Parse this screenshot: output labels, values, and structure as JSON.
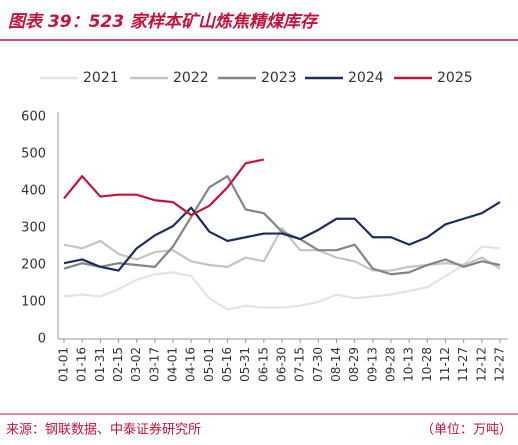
{
  "header": {
    "title": "图表 39：523 家样本矿山炼焦精煤库存"
  },
  "chart_data": {
    "type": "line",
    "categories": [
      "01-01",
      "01-16",
      "01-31",
      "02-15",
      "03-02",
      "03-17",
      "04-01",
      "04-16",
      "05-01",
      "05-16",
      "05-31",
      "06-15",
      "06-30",
      "07-15",
      "07-30",
      "08-14",
      "08-29",
      "09-13",
      "09-28",
      "10-13",
      "10-28",
      "11-12",
      "11-27",
      "12-12",
      "12-27"
    ],
    "series": [
      {
        "name": "2021",
        "color": "#e3e3e3",
        "values": [
          115,
          120,
          115,
          135,
          160,
          175,
          180,
          170,
          110,
          80,
          90,
          85,
          85,
          90,
          100,
          120,
          110,
          115,
          120,
          130,
          140,
          170,
          200,
          250,
          245
        ]
      },
      {
        "name": "2022",
        "color": "#c4c4c4",
        "values": [
          255,
          245,
          265,
          230,
          215,
          235,
          240,
          210,
          200,
          195,
          220,
          210,
          300,
          240,
          240,
          220,
          210,
          185,
          185,
          195,
          200,
          205,
          200,
          220,
          190
        ]
      },
      {
        "name": "2023",
        "color": "#858585",
        "values": [
          190,
          205,
          195,
          205,
          200,
          195,
          250,
          330,
          410,
          440,
          350,
          340,
          290,
          270,
          240,
          240,
          255,
          190,
          175,
          180,
          200,
          215,
          195,
          210,
          200
        ]
      },
      {
        "name": "2024",
        "color": "#1f2d5c",
        "values": [
          205,
          215,
          195,
          185,
          245,
          280,
          305,
          355,
          290,
          265,
          275,
          285,
          285,
          270,
          295,
          325,
          325,
          275,
          275,
          255,
          275,
          310,
          325,
          340,
          370
        ]
      },
      {
        "name": "2025",
        "color": "#c0143c",
        "values": [
          380,
          440,
          385,
          390,
          390,
          375,
          370,
          335,
          360,
          410,
          475,
          485,
          null,
          null,
          null,
          null,
          null,
          null,
          null,
          null,
          null,
          null,
          null,
          null,
          null
        ]
      }
    ],
    "ylim": [
      0,
      600
    ],
    "yticks": [
      0,
      100,
      200,
      300,
      400,
      500,
      600
    ],
    "legend": "top"
  },
  "footer": {
    "source": "来源：钢联数据、中泰证券研究所",
    "unit": "（单位：万吨）"
  }
}
